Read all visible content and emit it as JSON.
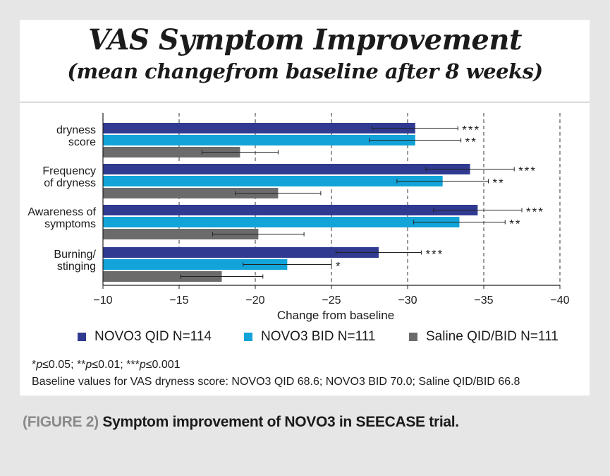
{
  "colors": {
    "qid": "#2f3a90",
    "bid": "#12a3d8",
    "saline": "#6b6b6b"
  },
  "chart_data": {
    "type": "bar",
    "orientation": "horizontal",
    "title": "VAS Symptom Improvement",
    "subtitle": "(mean changefrom baseline after 8 weeks)",
    "xlabel": "Change from baseline",
    "ylabel": "",
    "xlim": [
      -10,
      -40
    ],
    "xticks": [
      -10,
      -15,
      -20,
      -25,
      -30,
      -35,
      -40
    ],
    "xtick_labels": [
      "−10",
      "−15",
      "−20",
      "−25",
      "−30",
      "−35",
      "−40"
    ],
    "grid": "vertical dashed",
    "legend_position": "bottom",
    "categories": [
      [
        "dryness",
        "score"
      ],
      [
        "Frequency",
        "of dryness"
      ],
      [
        "Awareness of",
        "symptoms"
      ],
      [
        "Burning/",
        "stinging"
      ]
    ],
    "series": [
      {
        "name": "NOVO3 QID N=114",
        "color_key": "qid",
        "values": [
          -30.5,
          -34.1,
          -34.6,
          -28.1
        ],
        "errors": [
          2.8,
          2.9,
          2.9,
          2.8
        ],
        "significance": [
          "***",
          "***",
          "***",
          "***"
        ]
      },
      {
        "name": "NOVO3 BID N=111",
        "color_key": "bid",
        "values": [
          -30.5,
          -32.3,
          -33.4,
          -22.1
        ],
        "errors": [
          3.0,
          3.0,
          3.0,
          2.9
        ],
        "significance": [
          "**",
          "**",
          "**",
          "*"
        ]
      },
      {
        "name": "Saline QID/BID N=111",
        "color_key": "saline",
        "values": [
          -19.0,
          -21.5,
          -20.2,
          -17.8
        ],
        "errors": [
          2.5,
          2.8,
          3.0,
          2.7
        ],
        "significance": [
          "",
          "",
          "",
          ""
        ]
      }
    ]
  },
  "notes": {
    "significance": "*p≤0.05; **p≤0.01; ***p≤0.001",
    "baseline": "Baseline values for VAS dryness score: NOVO3 QID 68.6; NOVO3 BID 70.0; Saline QID/BID 66.8"
  },
  "caption": {
    "label": "(FIGURE 2)",
    "text": " Symptom improvement of NOVO3 in SEECASE trial."
  }
}
